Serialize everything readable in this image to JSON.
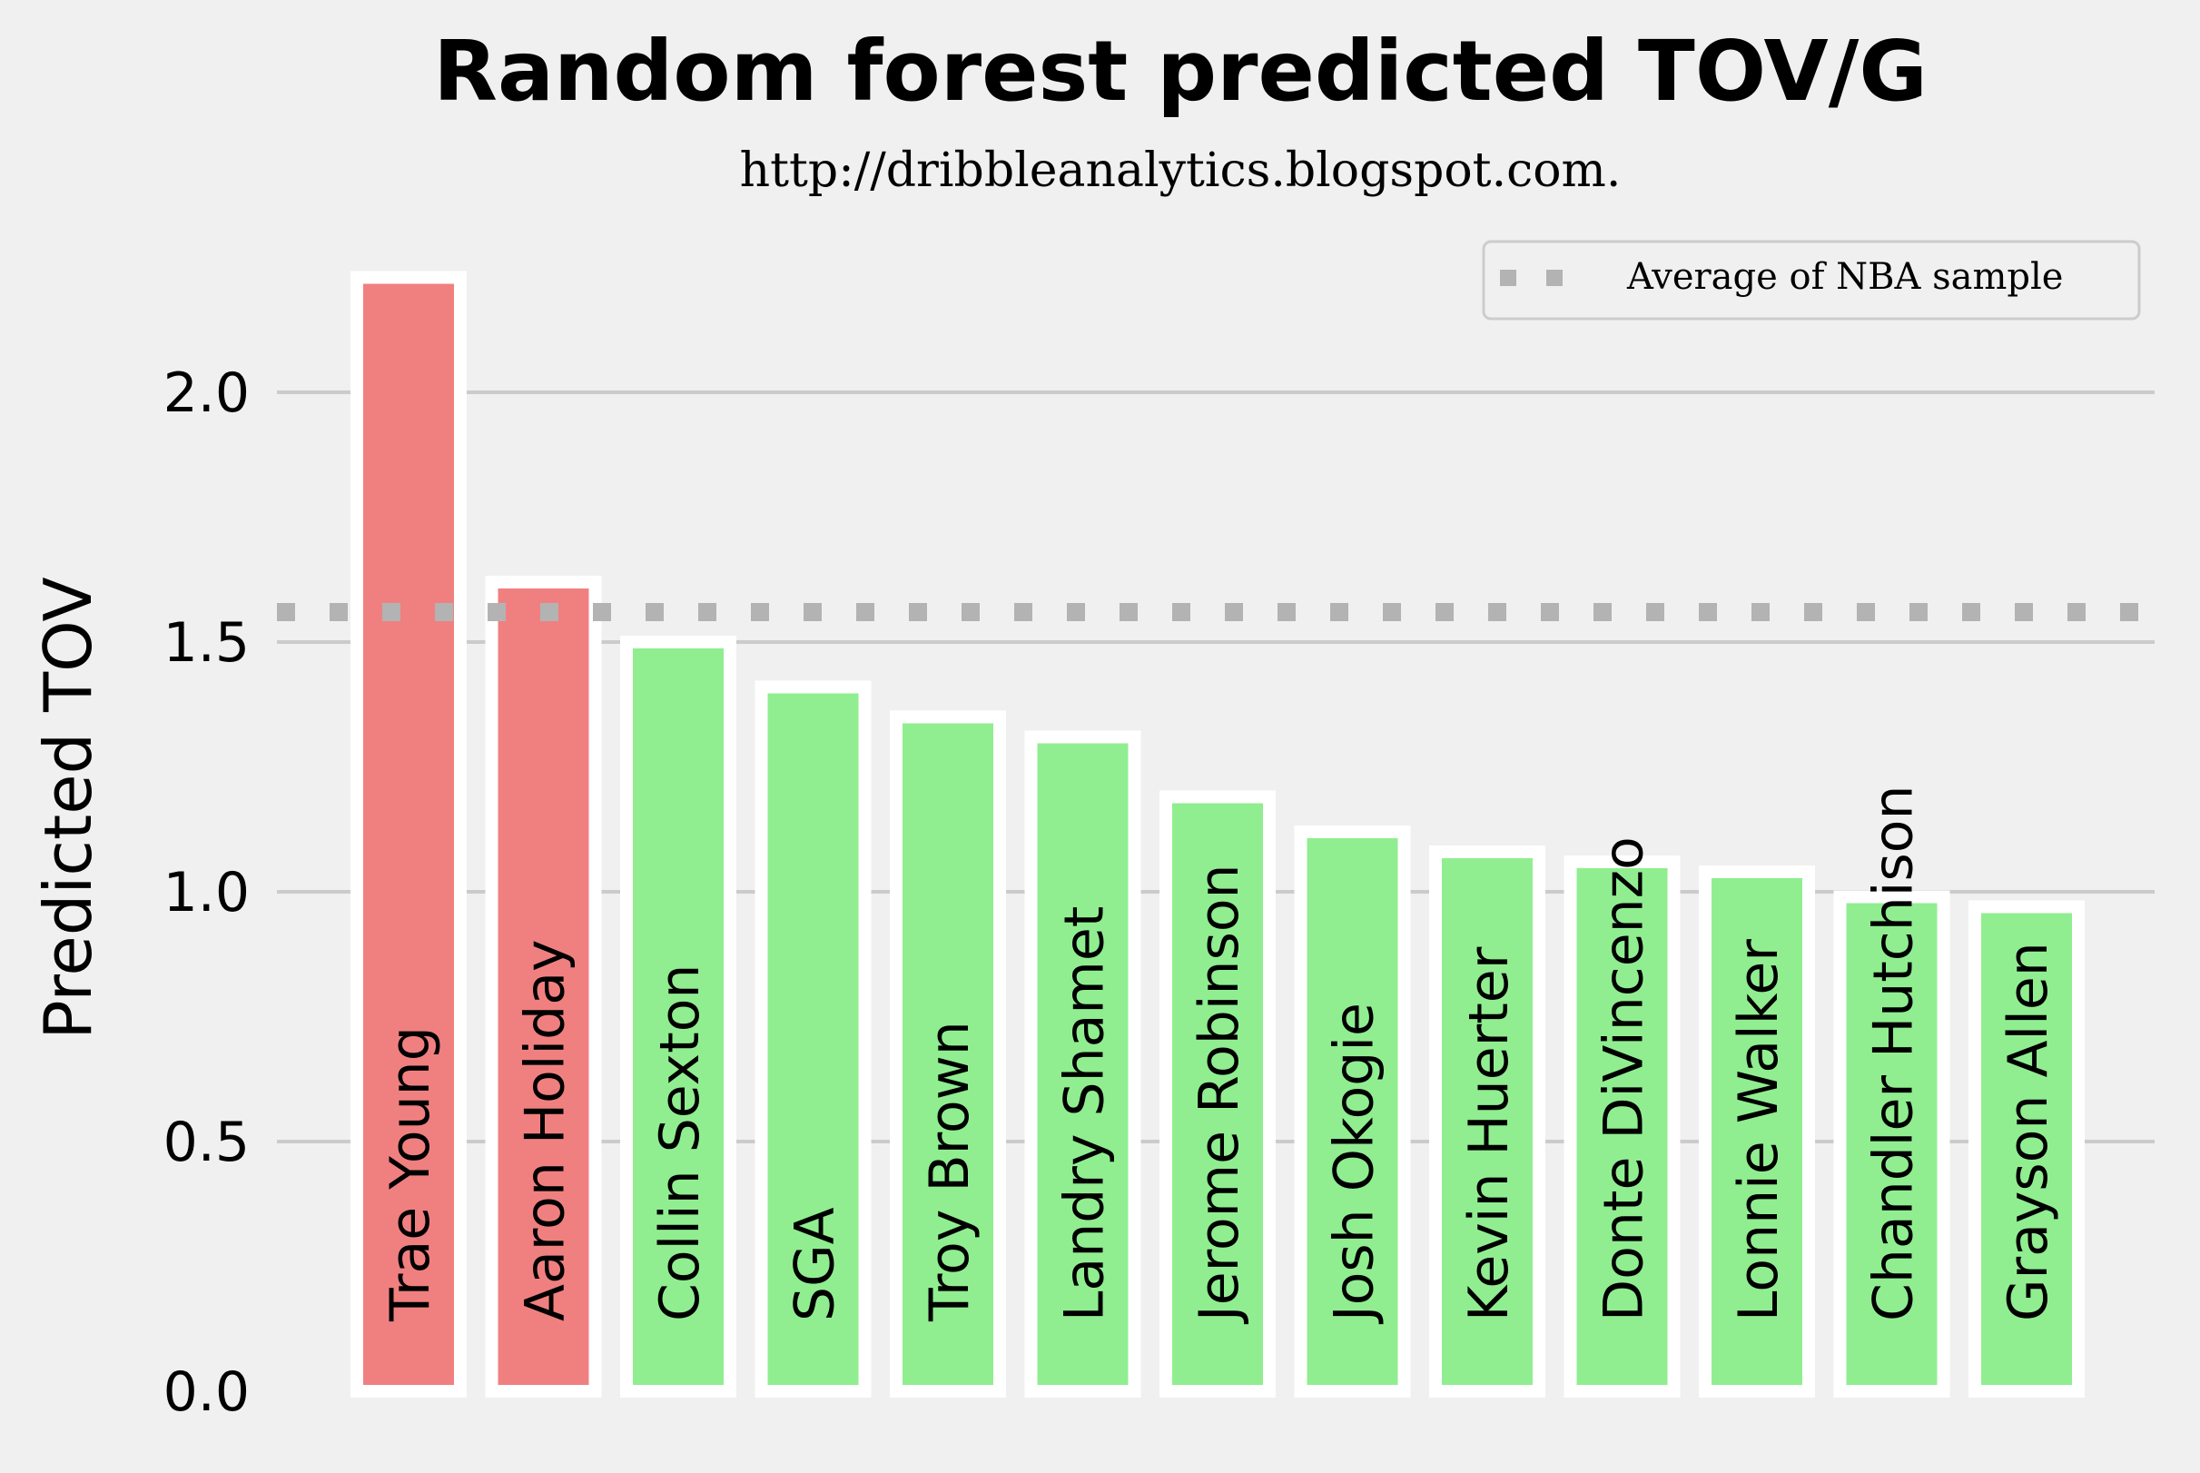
{
  "chart_data": {
    "type": "bar",
    "title": "Random forest predicted TOV/G",
    "subtitle": "http://dribbleanalytics.blogspot.com.",
    "ylabel": "Predicted TOV",
    "xlabel": "",
    "ylim": [
      0,
      2.35
    ],
    "yticks": [
      "0.0",
      "0.5",
      "1.0",
      "1.5",
      "2.0"
    ],
    "grid": "horizontal",
    "legend_position": "top-right",
    "reference_line": {
      "label": "Average of NBA sample",
      "value": 1.56,
      "color": "#b3b3b3"
    },
    "above_average_color": "#f08080",
    "below_average_color": "#90ee90",
    "categories": [
      "Trae Young",
      "Aaron Holiday",
      "Collin Sexton",
      "SGA",
      "Troy Brown",
      "Landry Shamet",
      "Jerome Robinson",
      "Josh Okogie",
      "Kevin Huerter",
      "Donte DiVincenzo",
      "Lonnie Walker",
      "Chandler Hutchison",
      "Grayson Allen"
    ],
    "values": [
      2.23,
      1.62,
      1.5,
      1.41,
      1.35,
      1.31,
      1.19,
      1.12,
      1.08,
      1.06,
      1.04,
      0.99,
      0.97
    ]
  }
}
